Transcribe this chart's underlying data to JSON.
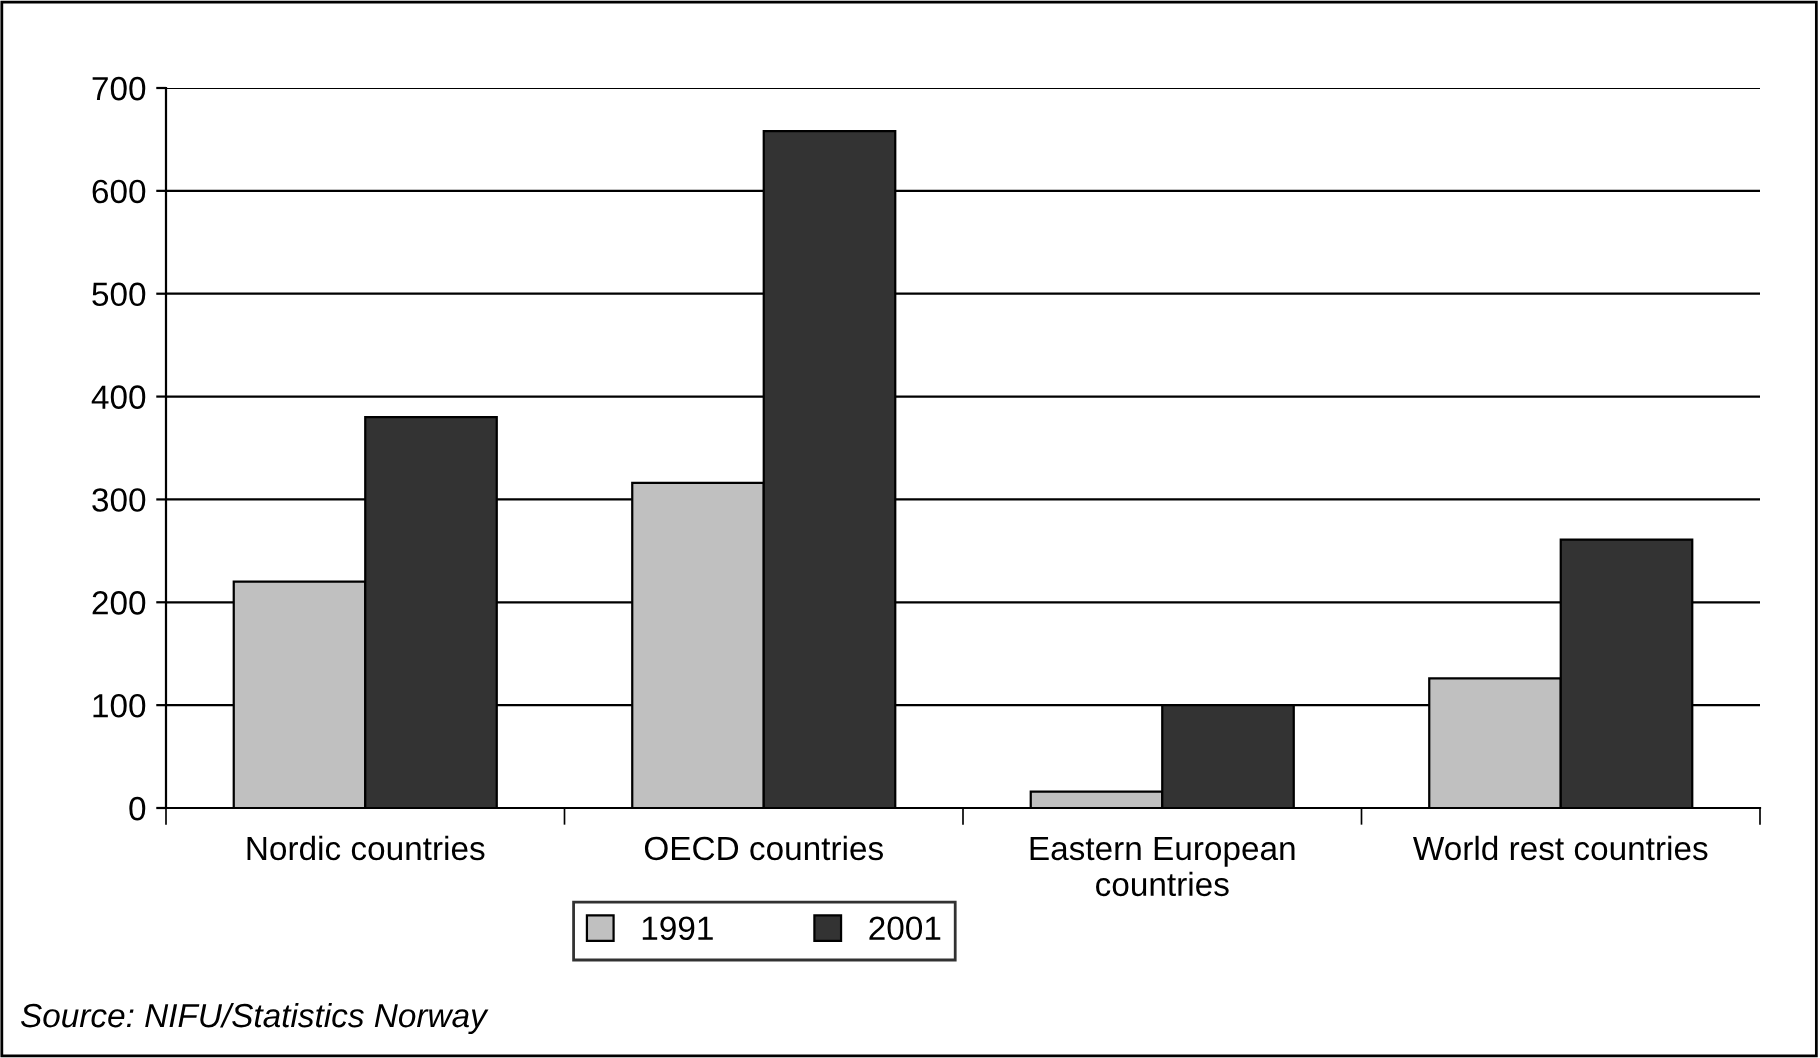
{
  "chart_data": {
    "type": "bar",
    "categories": [
      "Nordic countries",
      "OECD countries",
      "Eastern European\ncountries",
      "World rest countries"
    ],
    "series": [
      {
        "name": "1991",
        "color": "#c0c0c0",
        "values": [
          220,
          316,
          16,
          126
        ]
      },
      {
        "name": "2001",
        "color": "#333333",
        "values": [
          380,
          658,
          100,
          261
        ]
      }
    ],
    "ylim": [
      0,
      700
    ],
    "yticks": [
      0,
      100,
      200,
      300,
      400,
      500,
      600,
      700
    ],
    "grid": "y",
    "legend": "bottom",
    "annotations": [
      "Source: NIFU/Statistics Norway"
    ]
  }
}
